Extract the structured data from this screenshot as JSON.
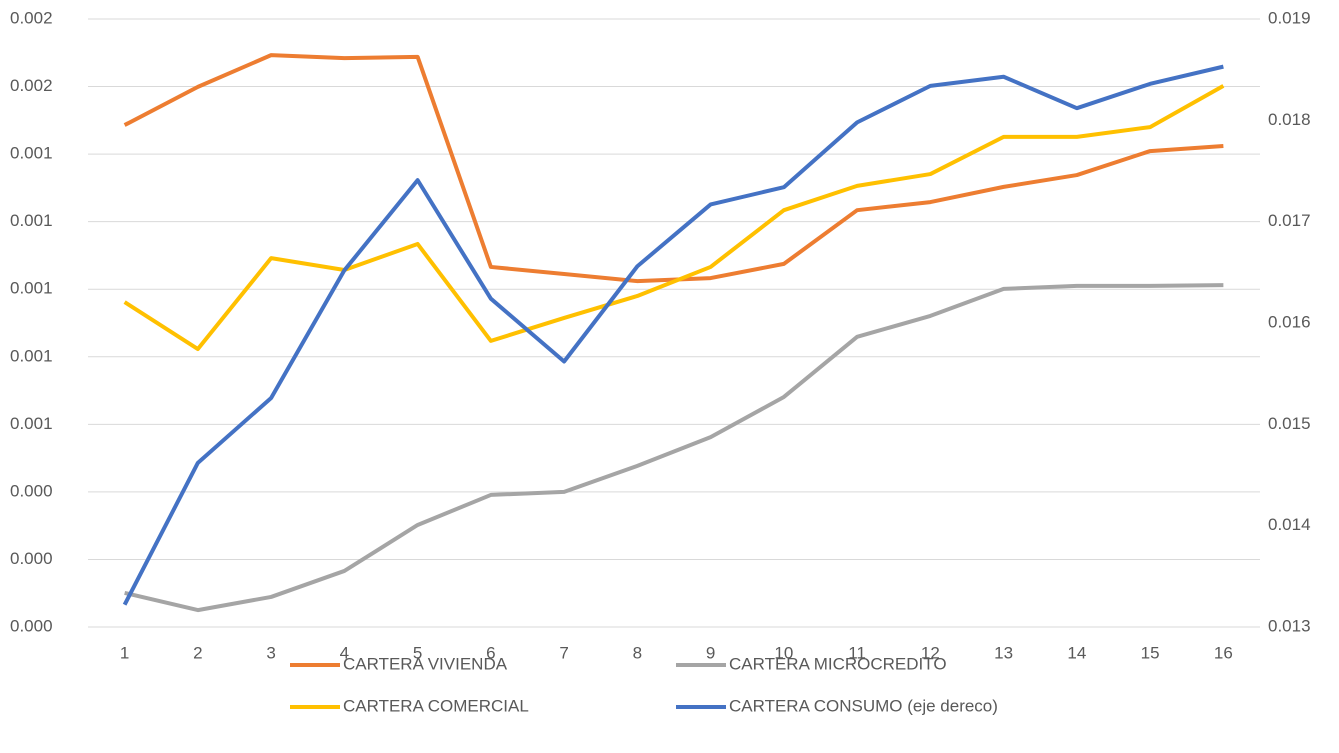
{
  "chart_data": {
    "type": "line",
    "x": [
      1,
      2,
      3,
      4,
      5,
      6,
      7,
      8,
      9,
      10,
      11,
      12,
      13,
      14,
      15,
      16
    ],
    "xlim": [
      0.5,
      16.5
    ],
    "xticks": [
      1,
      2,
      3,
      4,
      5,
      6,
      7,
      8,
      9,
      10,
      11,
      12,
      13,
      14,
      15,
      16
    ],
    "ylim": [
      0,
      0.0018
    ],
    "yticks": [
      {
        "value": 0,
        "label": "0.000"
      },
      {
        "value": 0.0002,
        "label": "0.000"
      },
      {
        "value": 0.0004,
        "label": "0.000"
      },
      {
        "value": 0.0006,
        "label": "0.001"
      },
      {
        "value": 0.0008,
        "label": "0.001"
      },
      {
        "value": 0.001,
        "label": "0.001"
      },
      {
        "value": 0.0012,
        "label": "0.001"
      },
      {
        "value": 0.0014,
        "label": "0.001"
      },
      {
        "value": 0.0016,
        "label": "0.002"
      },
      {
        "value": 0.0018,
        "label": "0.002"
      }
    ],
    "y2lim": [
      0.013,
      0.019
    ],
    "y2ticks": [
      0.013,
      0.014,
      0.015,
      0.016,
      0.017,
      0.018,
      0.019
    ],
    "grid": true,
    "legend": "bottom",
    "series": [
      {
        "name": "CARTERA VIVIENDA",
        "color": "#ed7d31",
        "values": [
          0.001486,
          0.001599,
          0.001693,
          0.001684,
          0.001688,
          0.001066,
          0.001045,
          0.001024,
          0.001033,
          0.001075,
          0.001234,
          0.001258,
          0.001303,
          0.001338,
          0.001409,
          0.001424
        ]
      },
      {
        "name": "CARTERA MICROCREDITO",
        "color": "#a5a5a5",
        "values": [
          0.000101,
          5e-05,
          8.9e-05,
          0.000166,
          0.000302,
          0.000391,
          0.0004,
          0.000477,
          0.000562,
          0.000681,
          0.000859,
          0.000921,
          0.001001,
          0.00101,
          0.00101,
          0.001012
        ]
      },
      {
        "name": "CARTERA COMERCIAL",
        "color": "#ffc000",
        "values": [
          0.000962,
          0.000823,
          0.001092,
          0.001057,
          0.001134,
          0.000847,
          0.000915,
          0.00098,
          0.001066,
          0.001234,
          0.001306,
          0.001341,
          0.001451,
          0.001451,
          0.00148,
          0.001602
        ]
      },
      {
        "name": "CARTERA CONSUMO (eje dereco)",
        "color": "#4472c4",
        "axis": "y2",
        "values": [
          0.01322,
          0.01462,
          0.01526,
          0.01652,
          0.01741,
          0.01624,
          0.01562,
          0.01656,
          0.01717,
          0.01734,
          0.01798,
          0.01834,
          0.01843,
          0.01812,
          0.01836,
          0.01853
        ]
      }
    ]
  }
}
